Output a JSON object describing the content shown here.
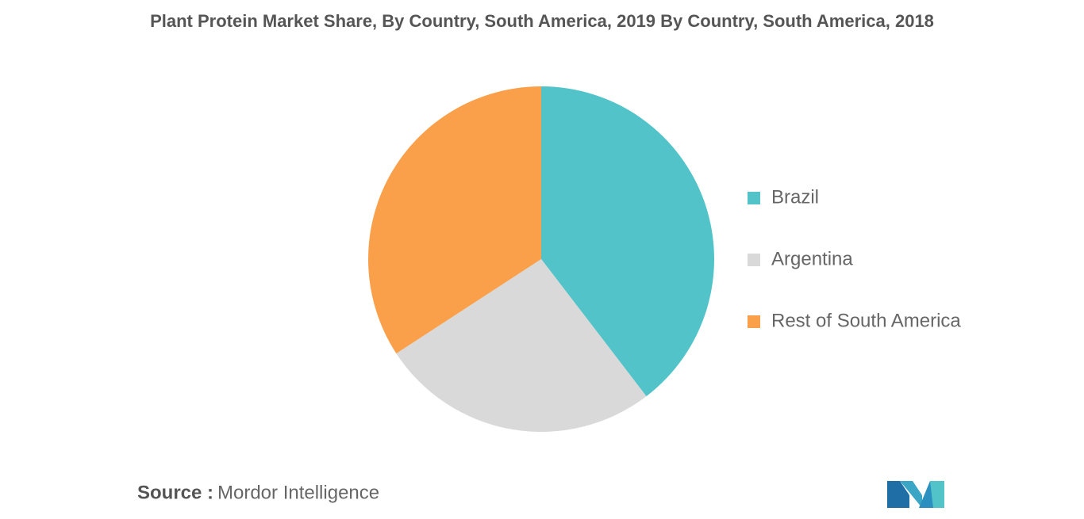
{
  "chart_data": {
    "type": "pie",
    "title": "Plant Protein Market Share, By Country, South America, 2019 By Country, South America, 2018",
    "categories": [
      "Brazil",
      "Argentina",
      "Rest of South America"
    ],
    "values": [
      39.6,
      26.2,
      34.2
    ],
    "colors": [
      "#52c4c9",
      "#d9d9d9",
      "#fba04a"
    ],
    "source_label": "Source :",
    "source": "Mordor Intelligence"
  }
}
